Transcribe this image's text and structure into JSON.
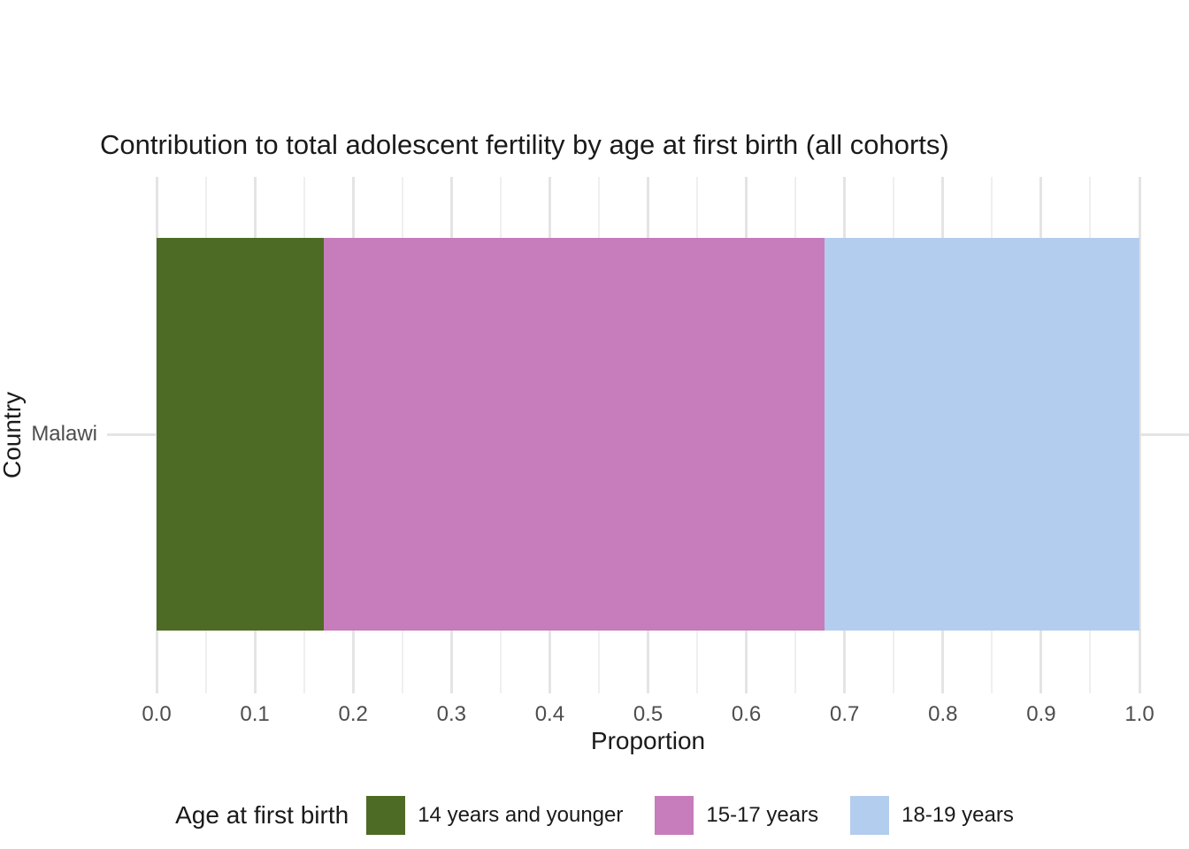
{
  "chart": {
    "title": "Contribution to total adolescent fertility by age at first birth (all cohorts)",
    "x_axis": {
      "label": "Proportion"
    },
    "y_axis": {
      "label": "Country",
      "categories": [
        "Malawi"
      ]
    },
    "legend": {
      "title": "Age at first birth"
    }
  },
  "chart_data": {
    "type": "bar",
    "orientation": "horizontal",
    "stacked": true,
    "title": "Contribution to total adolescent fertility by age at first birth (all cohorts)",
    "xlabel": "Proportion",
    "ylabel": "Country",
    "categories": [
      "Malawi"
    ],
    "series": [
      {
        "name": "14 years and younger",
        "values": [
          0.17
        ],
        "color": "#4d6b24"
      },
      {
        "name": "15-17 years",
        "values": [
          0.51
        ],
        "color": "#c77cbb"
      },
      {
        "name": "18-19 years",
        "values": [
          0.32
        ],
        "color": "#b3cdee"
      }
    ],
    "xlim": [
      0.0,
      1.0
    ],
    "x_ticks": [
      0.0,
      0.1,
      0.2,
      0.3,
      0.4,
      0.5,
      0.6,
      0.7,
      0.8,
      0.9,
      1.0
    ],
    "x_tick_labels": [
      "0.0",
      "0.1",
      "0.2",
      "0.3",
      "0.4",
      "0.5",
      "0.6",
      "0.7",
      "0.8",
      "0.9",
      "1.0"
    ],
    "grid": {
      "vertical_major": true,
      "vertical_minor": true,
      "horizontal_major": true
    },
    "legend_title": "Age at first birth",
    "legend_position": "bottom",
    "colors": {
      "background": "#ffffff",
      "grid_major": "#e4e4e4",
      "grid_minor": "#efefef",
      "tick_text": "#4d4d4d",
      "title_text": "#1a1a1a"
    }
  }
}
